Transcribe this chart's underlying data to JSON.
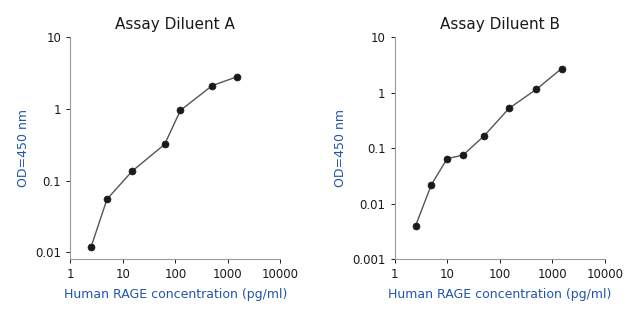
{
  "chart_A": {
    "title": "Assay Diluent A",
    "x": [
      2.5,
      5,
      15,
      62.5,
      125,
      500,
      1500
    ],
    "y": [
      0.012,
      0.055,
      0.135,
      0.32,
      0.95,
      2.1,
      2.8
    ],
    "xlim": [
      1,
      10000
    ],
    "ylim": [
      0.008,
      10
    ],
    "xlabel": "Human RAGE concentration (pg/ml)",
    "ylabel": "OD=450 nm",
    "xticks": [
      1,
      10,
      100,
      1000,
      10000
    ],
    "yticks": [
      0.01,
      0.1,
      1,
      10
    ],
    "ytick_labels": [
      "0.01",
      "0.1",
      "1",
      "10"
    ]
  },
  "chart_B": {
    "title": "Assay Diluent B",
    "x": [
      2.5,
      5,
      10,
      20,
      50,
      150,
      500,
      1500
    ],
    "y": [
      0.004,
      0.022,
      0.065,
      0.075,
      0.165,
      0.52,
      1.15,
      2.7
    ],
    "xlim": [
      1,
      10000
    ],
    "ylim": [
      0.001,
      10
    ],
    "xlabel": "Human RAGE concentration (pg/ml)",
    "ylabel": "OD=450 nm",
    "xticks": [
      1,
      10,
      100,
      1000,
      10000
    ],
    "yticks": [
      0.001,
      0.01,
      0.1,
      1,
      10
    ],
    "ytick_labels": [
      "0.001",
      "0.01",
      "0.1",
      "1",
      "10"
    ]
  },
  "line_color": "#555555",
  "marker_color": "#1a1a1a",
  "marker_size": 5,
  "title_fontsize": 11,
  "label_fontsize": 9,
  "tick_fontsize": 8.5,
  "text_color": "#1a1a1a",
  "axis_label_color": "#2255aa",
  "tick_label_color": "#1a1a1a",
  "spine_color": "#999999",
  "bg_color": "#ffffff"
}
